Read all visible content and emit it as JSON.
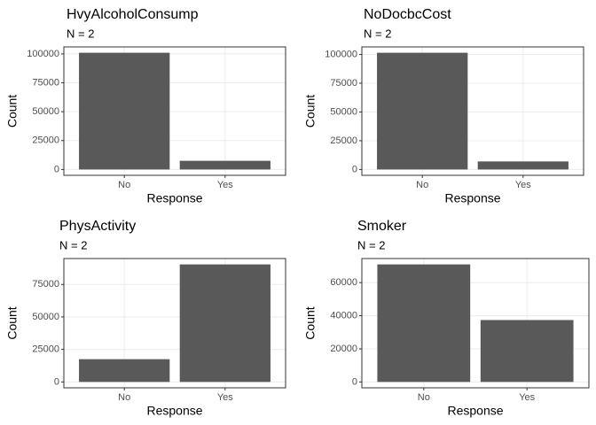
{
  "chart_data": [
    {
      "type": "bar",
      "title": "HvyAlcoholConsump",
      "subtitle": "N = 2",
      "xlabel": "Response",
      "ylabel": "Count",
      "categories": [
        "No",
        "Yes"
      ],
      "values": [
        101000,
        7500
      ],
      "color": "#595959",
      "ylim": [
        -5050,
        106050
      ],
      "yticks": [
        0,
        25000,
        50000,
        75000,
        100000
      ],
      "grid": true
    },
    {
      "type": "bar",
      "title": "NoDocbcCost",
      "subtitle": "N = 2",
      "xlabel": "Response",
      "ylabel": "Count",
      "categories": [
        "No",
        "Yes"
      ],
      "values": [
        101500,
        7000
      ],
      "color": "#595959",
      "ylim": [
        -5075,
        106575
      ],
      "yticks": [
        0,
        25000,
        50000,
        75000,
        100000
      ],
      "grid": true
    },
    {
      "type": "bar",
      "title": "PhysActivity",
      "subtitle": "N = 2",
      "xlabel": "Response",
      "ylabel": "Count",
      "categories": [
        "No",
        "Yes"
      ],
      "values": [
        17500,
        90400
      ],
      "color": "#595959",
      "ylim": [
        -4520,
        94920
      ],
      "yticks": [
        0,
        25000,
        50000,
        75000
      ],
      "grid": true
    },
    {
      "type": "bar",
      "title": "Smoker",
      "subtitle": "N = 2",
      "xlabel": "Response",
      "ylabel": "Count",
      "categories": [
        "No",
        "Yes"
      ],
      "values": [
        71000,
        37400
      ],
      "color": "#595959",
      "ylim": [
        -3550,
        74550
      ],
      "yticks": [
        0,
        20000,
        40000,
        60000
      ],
      "grid": true
    }
  ]
}
